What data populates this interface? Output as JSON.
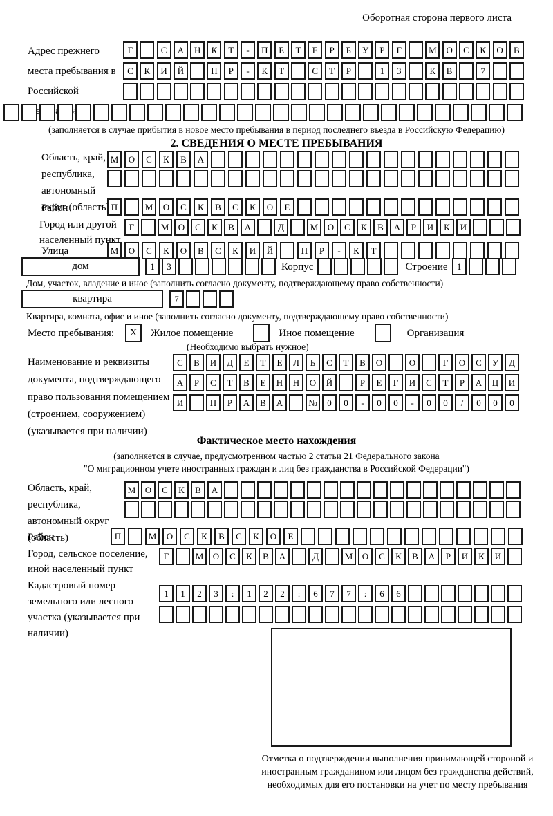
{
  "colors": {
    "background": "#ffffff",
    "text": "#000000",
    "box_border": "#1a1a1a"
  },
  "page": {
    "header_note": "Оборотная сторона первого листа"
  },
  "prev_address": {
    "label": "Адрес прежнего места пребывания в Российской Федерации",
    "rows": [
      [
        "Г",
        "",
        "С",
        "А",
        "Н",
        "К",
        "Т",
        "-",
        "П",
        "Е",
        "Т",
        "Е",
        "Р",
        "Б",
        "У",
        "Р",
        "Г",
        "",
        "М",
        "О",
        "С",
        "К",
        "О",
        "В"
      ],
      [
        "С",
        "К",
        "И",
        "Й",
        "",
        "П",
        "Р",
        "-",
        "К",
        "Т",
        "",
        "С",
        "Т",
        "Р",
        "",
        "1",
        "3",
        "",
        "К",
        "В",
        "",
        "7",
        "",
        ""
      ],
      [
        "",
        "",
        "",
        "",
        "",
        "",
        "",
        "",
        "",
        "",
        "",
        "",
        "",
        "",
        "",
        "",
        "",
        "",
        "",
        "",
        "",
        "",
        "",
        ""
      ]
    ],
    "full_row": [
      "",
      "",
      "",
      "",
      "",
      "",
      "",
      "",
      "",
      "",
      "",
      "",
      "",
      "",
      "",
      "",
      "",
      "",
      "",
      "",
      "",
      "",
      "",
      "",
      "",
      "",
      "",
      "",
      ""
    ],
    "caption": "(заполняется в случае прибытия в новое место пребывания в период последнего въезда в Российскую Федерацию)"
  },
  "section2": {
    "title": "2. СВЕДЕНИЯ О МЕСТЕ ПРЕБЫВАНИЯ",
    "oblast": {
      "label": "Область, край, республика, автономный округ (область)",
      "rows": [
        [
          "М",
          "О",
          "С",
          "К",
          "В",
          "А",
          "",
          "",
          "",
          "",
          "",
          "",
          "",
          "",
          "",
          "",
          "",
          "",
          "",
          "",
          "",
          "",
          "",
          ""
        ],
        [
          "",
          "",
          "",
          "",
          "",
          "",
          "",
          "",
          "",
          "",
          "",
          "",
          "",
          "",
          "",
          "",
          "",
          "",
          "",
          "",
          "",
          "",
          "",
          ""
        ]
      ]
    },
    "raion": {
      "label": "Район",
      "row": [
        "П",
        "",
        "М",
        "О",
        "С",
        "К",
        "В",
        "С",
        "К",
        "О",
        "Е",
        "",
        "",
        "",
        "",
        "",
        "",
        "",
        "",
        "",
        "",
        "",
        "",
        ""
      ]
    },
    "gorod": {
      "label": "Город или другой населенный пункт",
      "row": [
        "Г",
        "",
        "М",
        "О",
        "С",
        "К",
        "В",
        "А",
        "",
        "Д",
        "",
        "М",
        "О",
        "С",
        "К",
        "В",
        "А",
        "Р",
        "И",
        "К",
        "И",
        "",
        "",
        ""
      ]
    },
    "ulitsa": {
      "label": "Улица",
      "row": [
        "М",
        "О",
        "С",
        "К",
        "О",
        "В",
        "С",
        "К",
        "И",
        "Й",
        "",
        "П",
        "Р",
        "-",
        "К",
        "Т",
        "",
        "",
        "",
        "",
        "",
        "",
        "",
        ""
      ]
    },
    "dom": {
      "label": "дом",
      "boxes": [
        "1",
        "3",
        "",
        "",
        "",
        "",
        "",
        ""
      ],
      "korpus_label": "Корпус",
      "korpus_boxes": [
        "",
        "",
        "",
        "",
        ""
      ],
      "stroenie_label": "Строение",
      "stroenie_boxes": [
        "1",
        "",
        "",
        ""
      ],
      "caption": "Дом, участок, владение и иное (заполнить согласно документу, подтверждающему право собственности)"
    },
    "kvartira": {
      "label": "квартира",
      "boxes": [
        "7",
        "",
        "",
        ""
      ],
      "caption": "Квартира, комната, офис и иное (заполнить согласно документу, подтверждающему право собственности)"
    },
    "mesto": {
      "label": "Место пребывания:",
      "options": [
        {
          "check": "X",
          "label": "Жилое помещение"
        },
        {
          "check": "",
          "label": "Иное помещение"
        },
        {
          "check": "",
          "label": "Организация"
        }
      ],
      "note": "(Необходимо выбрать нужное)"
    },
    "document": {
      "label": "Наименование и реквизиты документа, подтверждающего право пользования помещением (строением, сооружением) (указывается при наличии)",
      "rows": [
        [
          "С",
          "В",
          "И",
          "Д",
          "Е",
          "Т",
          "Е",
          "Л",
          "Ь",
          "С",
          "Т",
          "В",
          "О",
          "",
          "О",
          "",
          "Г",
          "О",
          "С",
          "У",
          "Д"
        ],
        [
          "А",
          "Р",
          "С",
          "Т",
          "В",
          "Е",
          "Н",
          "Н",
          "О",
          "Й",
          "",
          "Р",
          "Е",
          "Г",
          "И",
          "С",
          "Т",
          "Р",
          "А",
          "Ц",
          "И"
        ],
        [
          "И",
          "",
          "П",
          "Р",
          "А",
          "В",
          "А",
          "",
          "№",
          "0",
          "0",
          "-",
          "0",
          "0",
          "-",
          "0",
          "0",
          "/",
          "0",
          "0",
          "0"
        ]
      ]
    }
  },
  "fact": {
    "title": "Фактическое место нахождения",
    "note_line1": "(заполняется в случае, предусмотренном частью 2 статьи 21 Федерального закона",
    "note_line2": "\"О миграционном учете иностранных граждан и лиц без гражданства в Российской Федерации\")",
    "oblast": {
      "label": "Область, край, республика, автономный округ (область)",
      "rows": [
        [
          "М",
          "О",
          "С",
          "К",
          "В",
          "А",
          "",
          "",
          "",
          "",
          "",
          "",
          "",
          "",
          "",
          "",
          "",
          "",
          "",
          "",
          "",
          "",
          "",
          ""
        ],
        [
          "",
          "",
          "",
          "",
          "",
          "",
          "",
          "",
          "",
          "",
          "",
          "",
          "",
          "",
          "",
          "",
          "",
          "",
          "",
          "",
          "",
          "",
          "",
          ""
        ]
      ]
    },
    "raion": {
      "label": "Район",
      "row": [
        "П",
        "",
        "М",
        "О",
        "С",
        "К",
        "В",
        "С",
        "К",
        "О",
        "Е",
        "",
        "",
        "",
        "",
        "",
        "",
        "",
        "",
        "",
        "",
        "",
        "",
        ""
      ]
    },
    "gorod": {
      "label": "Город, сельское поселение, иной населенный пункт",
      "row": [
        "Г",
        "",
        "М",
        "О",
        "С",
        "К",
        "В",
        "А",
        "",
        "Д",
        "",
        "М",
        "О",
        "С",
        "К",
        "В",
        "А",
        "Р",
        "И",
        "К",
        "И",
        ""
      ]
    },
    "kadastr": {
      "label": "Кадастровый номер земельного или лесного участка (указывается при наличии)",
      "rows": [
        [
          "1",
          "1",
          "2",
          "3",
          ":",
          "1",
          "2",
          "2",
          ":",
          "6",
          "7",
          "7",
          ":",
          "6",
          "6",
          "",
          "",
          "",
          "",
          "",
          "",
          ""
        ],
        [
          "",
          "",
          "",
          "",
          "",
          "",
          "",
          "",
          "",
          "",
          "",
          "",
          "",
          "",
          "",
          "",
          "",
          "",
          "",
          "",
          "",
          ""
        ]
      ]
    },
    "stamp_caption": "Отметка о подтверждении выполнения принимающей стороной и иностранным гражданином или лицом без гражданства действий, необходимых для его постановки на учет по месту пребывания"
  }
}
